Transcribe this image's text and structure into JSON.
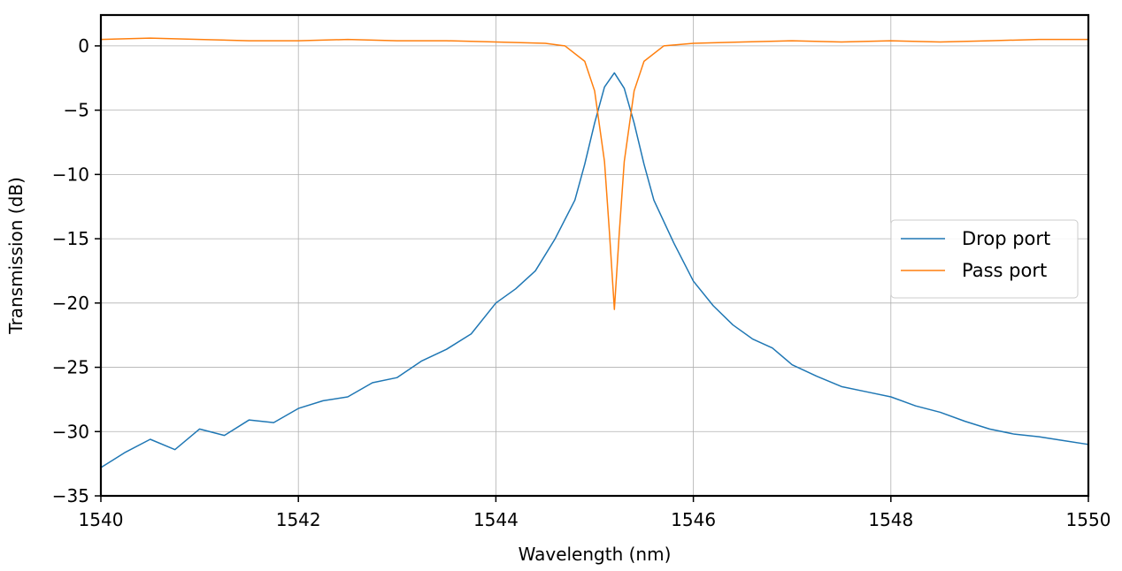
{
  "chart_data": {
    "type": "line",
    "title": "",
    "xlabel": "Wavelength (nm)",
    "ylabel": "Transmission (dB)",
    "xlim": [
      1540,
      1550
    ],
    "ylim": [
      -35,
      2.4
    ],
    "xticks": [
      1540,
      1542,
      1544,
      1546,
      1548,
      1550
    ],
    "xtick_labels": [
      "1540",
      "1542",
      "1544",
      "1546",
      "1548",
      "1550"
    ],
    "yticks": [
      0,
      -5,
      -10,
      -15,
      -20,
      -25,
      -30,
      -35
    ],
    "ytick_labels": [
      "0",
      "−5",
      "−10",
      "−15",
      "−20",
      "−25",
      "−30",
      "−35"
    ],
    "grid": true,
    "legend_position": "center-right",
    "series": [
      {
        "name": "Drop port",
        "color": "#1f77b4",
        "x": [
          1540.0,
          1540.25,
          1540.5,
          1540.75,
          1541.0,
          1541.25,
          1541.5,
          1541.75,
          1542.0,
          1542.25,
          1542.5,
          1542.75,
          1543.0,
          1543.25,
          1543.5,
          1543.75,
          1544.0,
          1544.2,
          1544.4,
          1544.6,
          1544.8,
          1544.9,
          1545.0,
          1545.1,
          1545.2,
          1545.3,
          1545.4,
          1545.5,
          1545.6,
          1545.8,
          1546.0,
          1546.2,
          1546.4,
          1546.6,
          1546.8,
          1547.0,
          1547.25,
          1547.5,
          1547.75,
          1548.0,
          1548.25,
          1548.5,
          1548.75,
          1549.0,
          1549.25,
          1549.5,
          1549.75,
          1550.0
        ],
        "y": [
          -32.8,
          -31.6,
          -30.6,
          -31.4,
          -29.8,
          -30.3,
          -29.1,
          -29.3,
          -28.2,
          -27.6,
          -27.3,
          -26.2,
          -25.8,
          -24.5,
          -23.6,
          -22.4,
          -20.0,
          -18.9,
          -17.5,
          -15.0,
          -12.0,
          -9.2,
          -6.0,
          -3.2,
          -2.1,
          -3.3,
          -6.0,
          -9.2,
          -12.0,
          -15.3,
          -18.3,
          -20.2,
          -21.7,
          -22.8,
          -23.5,
          -24.8,
          -25.7,
          -26.5,
          -26.9,
          -27.3,
          -28.0,
          -28.5,
          -29.2,
          -29.8,
          -30.2,
          -30.4,
          -30.7,
          -31.0
        ]
      },
      {
        "name": "Pass port",
        "color": "#ff7f0e",
        "x": [
          1540.0,
          1540.5,
          1541.0,
          1541.5,
          1542.0,
          1542.5,
          1543.0,
          1543.5,
          1544.0,
          1544.5,
          1544.7,
          1544.9,
          1545.0,
          1545.1,
          1545.15,
          1545.2,
          1545.25,
          1545.3,
          1545.4,
          1545.5,
          1545.7,
          1546.0,
          1546.5,
          1547.0,
          1547.5,
          1548.0,
          1548.5,
          1549.0,
          1549.5,
          1550.0
        ],
        "y": [
          0.5,
          0.6,
          0.5,
          0.4,
          0.4,
          0.5,
          0.4,
          0.4,
          0.3,
          0.2,
          0.0,
          -1.2,
          -3.5,
          -9.0,
          -14.5,
          -20.5,
          -14.5,
          -9.0,
          -3.5,
          -1.2,
          0.0,
          0.2,
          0.3,
          0.4,
          0.3,
          0.4,
          0.3,
          0.4,
          0.5,
          0.5
        ]
      }
    ]
  }
}
